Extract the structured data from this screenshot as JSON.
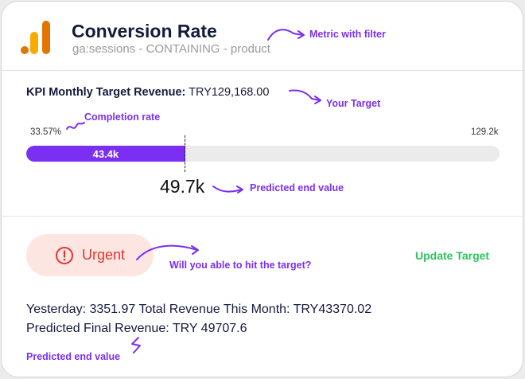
{
  "header": {
    "title": "Conversion Rate",
    "subtitle": "ga:sessions - CONTAINING - product",
    "annotation": "Metric with filter"
  },
  "kpi": {
    "label": "KPI Monthly Target Revenue:",
    "value": "TRY129,168.00",
    "annotation": "Your Target"
  },
  "progress": {
    "completion_label": "33.57%",
    "completion_annotation": "Completion rate",
    "target_label": "129.2k",
    "current_value_label": "43.4k",
    "fill_fraction": 0.3357,
    "predicted_value": "49.7k",
    "predicted_annotation": "Predicted end value"
  },
  "status": {
    "label": "Urgent",
    "annotation": "Will you able to hit the target?",
    "update_label": "Update Target"
  },
  "stats": {
    "line1": "Yesterday: 3351.97 Total Revenue This Month: TRY43370.02",
    "line2": "Predicted Final Revenue: TRY 49707.6",
    "annotation": "Predicted end value"
  },
  "colors": {
    "accent": "#7b2ff2",
    "urgent": "#e5342e",
    "urgent_bg": "#fde5e2",
    "update": "#2fc25e",
    "logo_orange": "#f9ab00",
    "logo_dark_orange": "#e37400"
  },
  "icons": {
    "logo": "analytics-logo-icon",
    "alert": "alert-circle-icon"
  }
}
